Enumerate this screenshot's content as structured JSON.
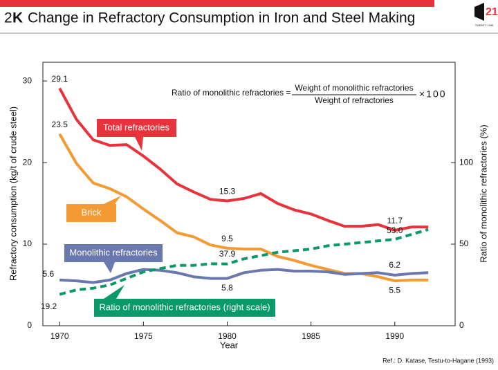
{
  "chart_data": {
    "type": "line",
    "title_number": "2",
    "title_letter": "K",
    "title": "Change in Refractory Consumption in Iron and Steel Making",
    "logo": "21",
    "logo_text": "TWENTY ONE",
    "x_label": "Year",
    "y_label": "Refractory consumption (kg/t of crude steel)",
    "y2_label": "Ratio of monolithic refractories (%)",
    "formula": {
      "lhs": "Ratio of monolithic refractories =",
      "numerator": "Weight of monolithic refractories",
      "denominator": "Weight of refractories",
      "multiplier": "×100"
    },
    "source": "Ref.: D. Katase, Testu-to-Hagane (1993)",
    "x": [
      1970,
      1971,
      1972,
      1973,
      1974,
      1975,
      1976,
      1977,
      1978,
      1979,
      1980,
      1981,
      1982,
      1983,
      1984,
      1985,
      1986,
      1987,
      1988,
      1989,
      1990,
      1991,
      1992
    ],
    "xlim": [
      1969,
      1993.6
    ],
    "xticks": [
      1970,
      1975,
      1980,
      1985,
      1990
    ],
    "ylim": [
      0,
      32.3
    ],
    "yticks": [
      0,
      10,
      20,
      30
    ],
    "y2lim": [
      0,
      161.5
    ],
    "y2ticks": [
      0,
      50,
      100
    ],
    "series": [
      {
        "name": "Total refractories",
        "color": "#e8333c",
        "values": [
          29.1,
          25.3,
          22.8,
          22.1,
          22.2,
          20.8,
          19.2,
          17.4,
          16.4,
          15.5,
          15.3,
          15.6,
          16.2,
          15.0,
          14.2,
          13.7,
          12.9,
          12.2,
          12.2,
          12.4,
          11.7,
          12.1,
          12.1
        ],
        "value_labels": [
          "29.1",
          null,
          null,
          null,
          null,
          null,
          null,
          null,
          null,
          null,
          "15.3",
          null,
          null,
          null,
          null,
          null,
          null,
          null,
          null,
          null,
          "11.7",
          null,
          null
        ]
      },
      {
        "name": "Brick",
        "color": "#f39a32",
        "values": [
          23.5,
          19.9,
          17.5,
          16.8,
          15.8,
          14.3,
          12.9,
          11.4,
          10.9,
          9.9,
          9.5,
          9.4,
          9.4,
          8.5,
          8.0,
          7.4,
          6.9,
          6.4,
          6.4,
          6.0,
          5.5,
          5.6,
          5.6
        ],
        "value_labels": [
          "23.5",
          null,
          null,
          null,
          null,
          null,
          null,
          null,
          null,
          null,
          "9.5",
          null,
          null,
          null,
          null,
          null,
          null,
          null,
          null,
          null,
          "5.5",
          null,
          null
        ]
      },
      {
        "name": "Monolithic refractories",
        "color": "#6a78b0",
        "values": [
          5.6,
          5.5,
          5.3,
          5.6,
          6.4,
          6.9,
          6.8,
          6.5,
          6.0,
          5.8,
          5.8,
          6.5,
          6.8,
          6.9,
          6.7,
          6.7,
          6.6,
          6.3,
          6.4,
          6.5,
          6.2,
          6.4,
          6.5
        ],
        "value_labels": [
          "5.6",
          null,
          null,
          null,
          null,
          null,
          null,
          null,
          null,
          null,
          "5.8",
          null,
          null,
          null,
          null,
          null,
          null,
          null,
          null,
          null,
          "6.2",
          null,
          null
        ]
      },
      {
        "name": "Ratio of monolithic refractories (right scale)",
        "color": "#0a9a6a",
        "axis": "y2",
        "dashed": true,
        "values": [
          19.2,
          22,
          23,
          25,
          29,
          33,
          35,
          37,
          37,
          38,
          37.9,
          41,
          43,
          45,
          46,
          47,
          49,
          50,
          51,
          52,
          53.0,
          56,
          59
        ],
        "value_labels": [
          "19.2",
          null,
          null,
          null,
          null,
          null,
          null,
          null,
          null,
          null,
          "37.9",
          null,
          null,
          null,
          null,
          null,
          null,
          null,
          null,
          null,
          "53.0",
          null,
          null
        ]
      }
    ]
  }
}
